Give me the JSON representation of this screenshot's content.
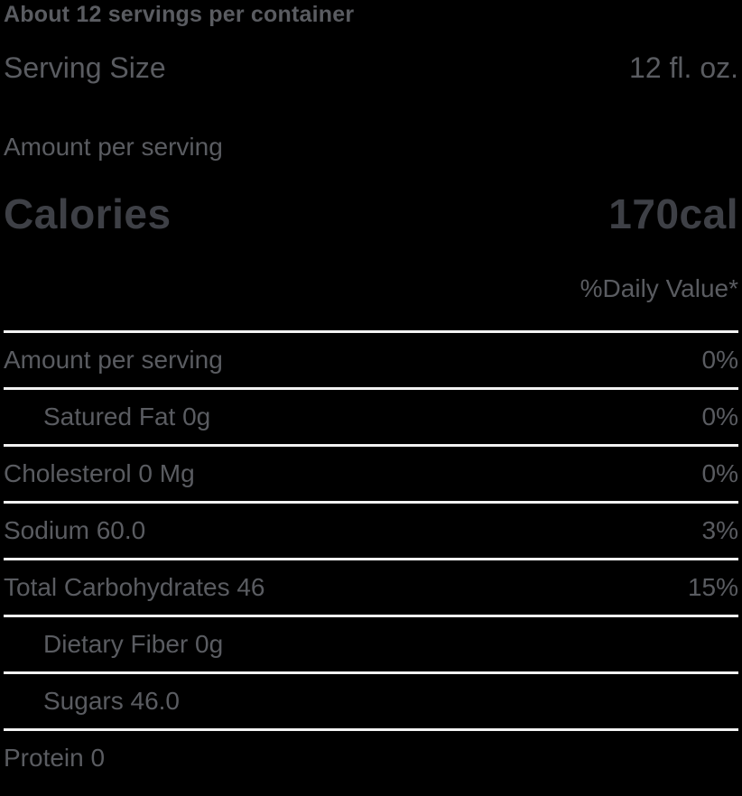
{
  "label": {
    "servings_line": "About 12 servings per container",
    "serving_size": {
      "label": "Serving Size",
      "value": "12 fl. oz."
    },
    "amount_header": "Amount per serving",
    "calories": {
      "label": "Calories",
      "value": "170cal"
    },
    "daily_value_header": "%Daily Value*",
    "rows": [
      {
        "name": "Amount per serving",
        "dv": "0%",
        "indent": false,
        "divider": true
      },
      {
        "name": "Satured Fat 0g",
        "dv": "0%",
        "indent": true,
        "divider": true
      },
      {
        "name": "Cholesterol 0 Mg",
        "dv": "0%",
        "indent": false,
        "divider": true
      },
      {
        "name": "Sodium 60.0",
        "dv": "3%",
        "indent": false,
        "divider": true
      },
      {
        "name": "Total Carbohydrates 46",
        "dv": "15%",
        "indent": false,
        "divider": true
      },
      {
        "name": "Dietary Fiber 0g",
        "dv": "",
        "indent": true,
        "divider": true
      },
      {
        "name": "Sugars 46.0",
        "dv": "",
        "indent": true,
        "divider": true
      },
      {
        "name": "Protein 0",
        "dv": "",
        "indent": false,
        "divider": true
      }
    ],
    "colors": {
      "background": "#000000",
      "text": "#5a5c61",
      "heading_text": "#3e4046",
      "divider": "#f2f2f2"
    }
  }
}
